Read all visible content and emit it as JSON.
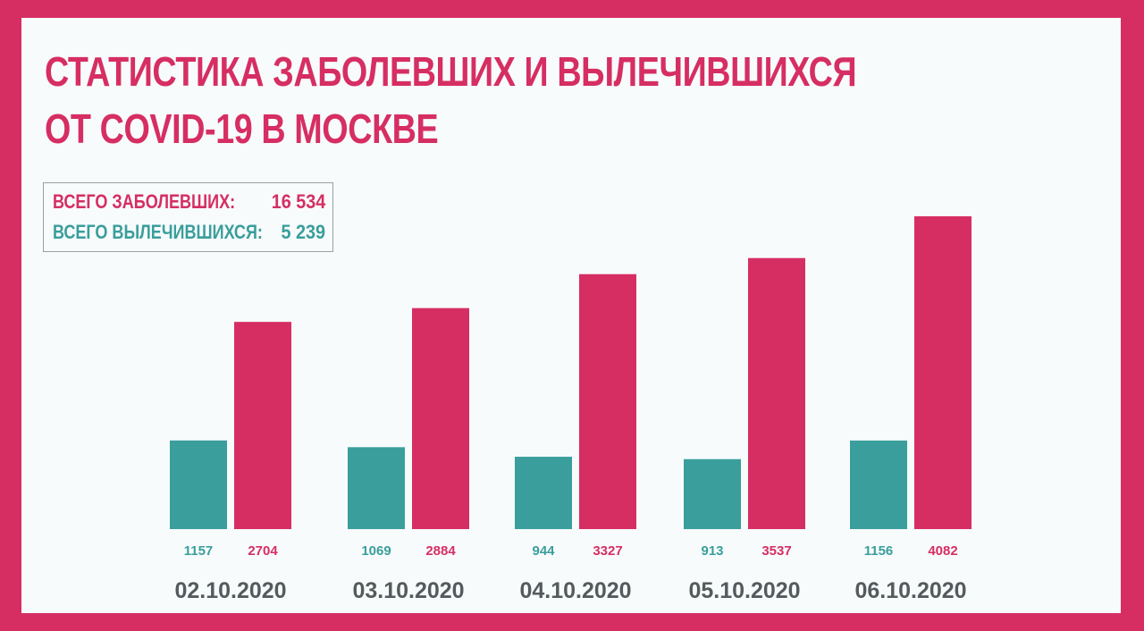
{
  "header": {
    "title_line1": "СТАТИСТИКА ЗАБОЛЕВШИХ И ВЫЛЕЧИВШИХСЯ",
    "title_line2": "ОТ COVID-19 В МОСКВЕ"
  },
  "totals": {
    "infected_label": "ВСЕГО ЗАБОЛЕВШИХ:",
    "infected_value": "16 534",
    "recovered_label": "ВСЕГО ВЫЛЕЧИВШИХСЯ:",
    "recovered_value": "5 239"
  },
  "colors": {
    "frame": "#d62e63",
    "background": "#f7fbfb",
    "infected": "#d62e63",
    "recovered": "#3a9e9c",
    "date_text": "#555a5c"
  },
  "chart_data": {
    "type": "bar",
    "categories": [
      "02.10.2020",
      "03.10.2020",
      "04.10.2020",
      "05.10.2020",
      "06.10.2020"
    ],
    "series": [
      {
        "name": "",
        "values": [
          1157,
          1069,
          944,
          913,
          1156
        ],
        "color": "#3a9e9c"
      },
      {
        "name": "",
        "values": [
          2704,
          2884,
          3327,
          3537,
          4082
        ],
        "color": "#d62e63"
      }
    ],
    "title": "СТАТИСТИКА ЗАБОЛЕВШИХ И ВЫЛЕЧИВШИХСЯ ОТ COVID-19 В МОСКВЕ",
    "xlabel": "",
    "ylabel": "",
    "ylim": [
      0,
      4082
    ],
    "grid": false,
    "legend": "none",
    "data_labels": "below-bars"
  }
}
